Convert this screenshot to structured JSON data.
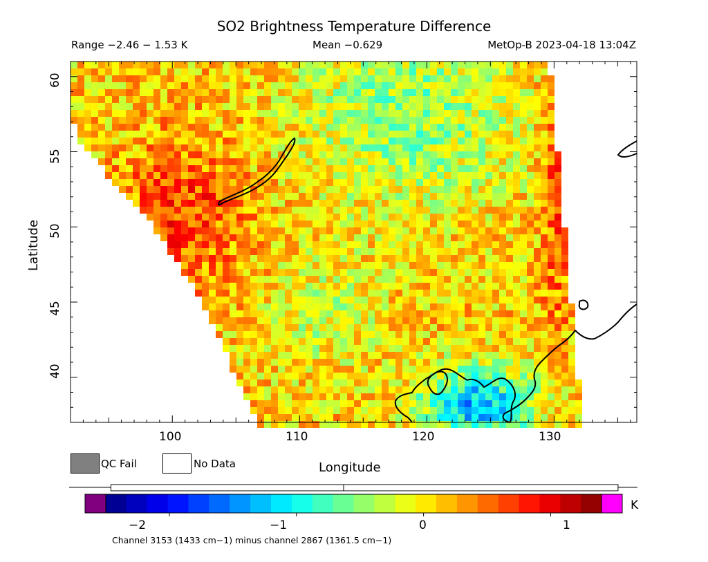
{
  "title": "SO2 Brightness Temperature Difference",
  "range_text": "Range −2.46 − 1.53 K",
  "mean_text": "Mean −0.629",
  "satellite_time": "MetOp-B 2023-04-18 13:04Z",
  "map": {
    "xlabel": "Longitude",
    "ylabel": "Latitude",
    "lon_range": [
      92,
      136.5
    ],
    "lat_range": [
      37,
      61
    ],
    "lon_ticks": [
      "100",
      "110",
      "120",
      "130"
    ],
    "lat_ticks": [
      "40",
      "45",
      "50",
      "55",
      "60"
    ]
  },
  "legend": {
    "qc_fail": "QC Fail",
    "no_data": "No Data",
    "qc_fail_color": "#808080",
    "no_data_color": "#ffffff"
  },
  "colorbar": {
    "unit": "K",
    "ticks": [
      "−2",
      "−1",
      "0",
      "1"
    ],
    "range": [
      -2.5,
      1.4
    ],
    "under_color": "#800080",
    "over_color": "#ff00ff",
    "colormap": "jet",
    "range_box": [
      -2.46,
      1.53
    ],
    "mean_marker": -0.629
  },
  "footnote": "Channel 3153 (1433 cm−1) minus channel 2867 (1361.5 cm−1)"
}
